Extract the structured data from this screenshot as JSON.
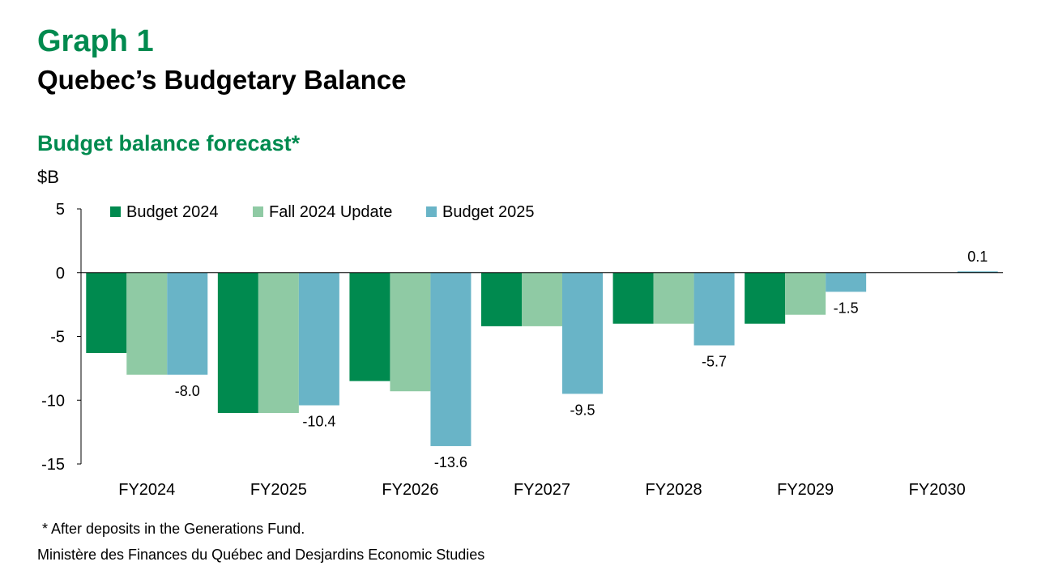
{
  "header": {
    "graph_number": "Graph 1",
    "title": "Quebec’s Budgetary Balance"
  },
  "chart_data": {
    "type": "bar",
    "title": "Budget balance forecast*",
    "ylabel": "$B",
    "ylim": [
      -15,
      5
    ],
    "yticks": [
      5,
      0,
      -5,
      -10,
      -15
    ],
    "legend_position": "top-left",
    "categories": [
      "FY2024",
      "FY2025",
      "FY2026",
      "FY2027",
      "FY2028",
      "FY2029",
      "FY2030"
    ],
    "series": [
      {
        "name": "Budget 2024",
        "color": "#008a4f",
        "values": [
          -6.3,
          -11.0,
          -8.5,
          -4.2,
          -4.0,
          -4.0,
          null
        ]
      },
      {
        "name": "Fall 2024 Update",
        "color": "#8fcaa4",
        "values": [
          -8.0,
          -11.0,
          -9.3,
          -4.2,
          -4.0,
          -3.3,
          null
        ]
      },
      {
        "name": "Budget 2025",
        "color": "#69b4c7",
        "values": [
          -8.0,
          -10.4,
          -13.6,
          -9.5,
          -5.7,
          -1.5,
          0.1
        ]
      }
    ],
    "data_labels": {
      "series": "Budget 2025",
      "labels": [
        "-8.0",
        "-10.4",
        "-13.6",
        "-9.5",
        "-5.7",
        "-1.5",
        "0.1"
      ]
    }
  },
  "footer": {
    "footnote": "* After deposits in the Generations Fund.",
    "source": "Ministère des Finances du Québec and Desjardins Economic Studies"
  }
}
